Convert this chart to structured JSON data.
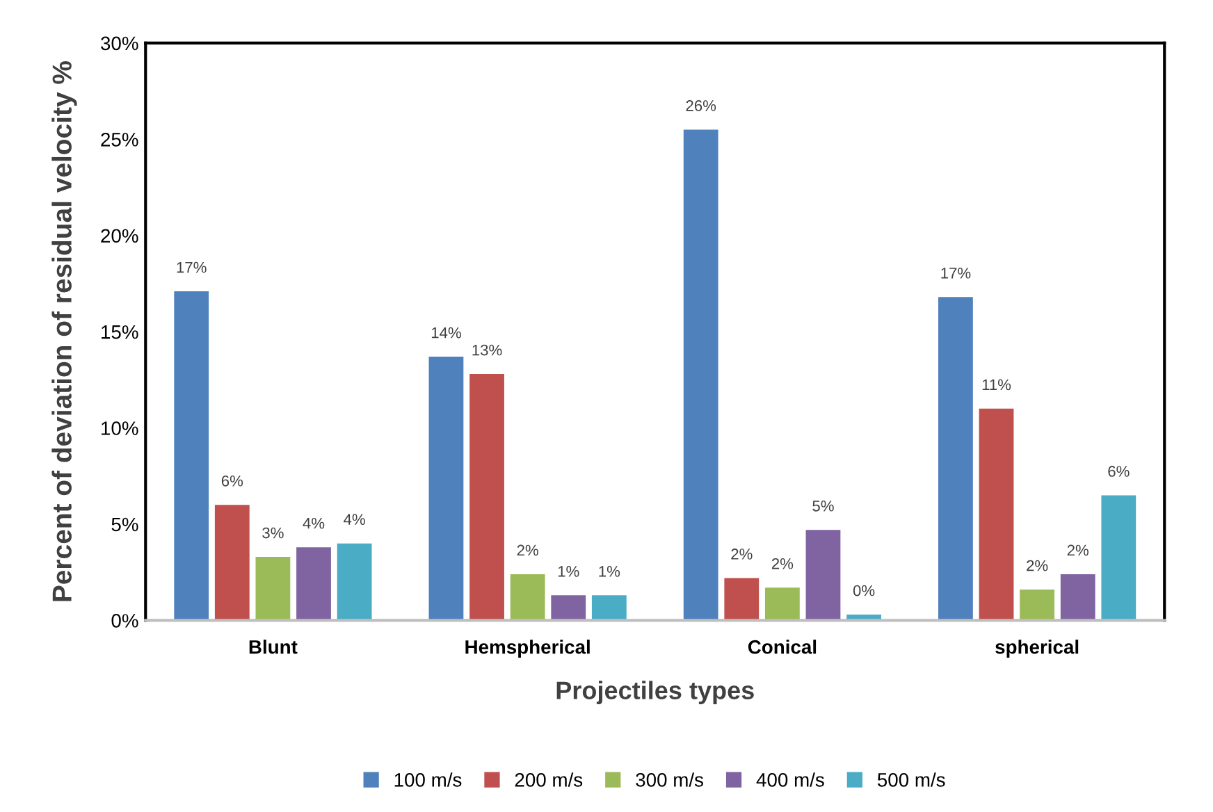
{
  "chart_data": {
    "type": "bar",
    "xlabel": "Projectiles types",
    "ylabel": "Percent of deviation of residual velocity %",
    "categories": [
      "Blunt",
      "Hemspherical",
      "Conical",
      "spherical"
    ],
    "ylim": [
      0,
      30
    ],
    "yticks": [
      {
        "value": 0,
        "label": "0%"
      },
      {
        "value": 5,
        "label": "5%"
      },
      {
        "value": 10,
        "label": "10%"
      },
      {
        "value": 15,
        "label": "15%"
      },
      {
        "value": 20,
        "label": "20%"
      },
      {
        "value": 25,
        "label": "25%"
      },
      {
        "value": 30,
        "label": "30%"
      }
    ],
    "grid": false,
    "legend": "bottom",
    "series": [
      {
        "name": "100 m/s",
        "color": "#4f81bd",
        "values": [
          17.1,
          13.7,
          25.5,
          16.8
        ],
        "value_labels": [
          "17%",
          "14%",
          "26%",
          "17%"
        ]
      },
      {
        "name": "200 m/s",
        "color": "#c0504d",
        "values": [
          6.0,
          12.8,
          2.2,
          11.0
        ],
        "value_labels": [
          "6%",
          "13%",
          "2%",
          "11%"
        ]
      },
      {
        "name": "300 m/s",
        "color": "#9bbb59",
        "values": [
          3.3,
          2.4,
          1.7,
          1.6
        ],
        "value_labels": [
          "3%",
          "2%",
          "2%",
          "2%"
        ]
      },
      {
        "name": "400 m/s",
        "color": "#8064a2",
        "values": [
          3.8,
          1.3,
          4.7,
          2.4
        ],
        "value_labels": [
          "4%",
          "1%",
          "5%",
          "2%"
        ]
      },
      {
        "name": "500 m/s",
        "color": "#4bacc6",
        "values": [
          4.0,
          1.3,
          0.3,
          6.5
        ],
        "value_labels": [
          "4%",
          "1%",
          "0%",
          "6%"
        ]
      }
    ]
  }
}
